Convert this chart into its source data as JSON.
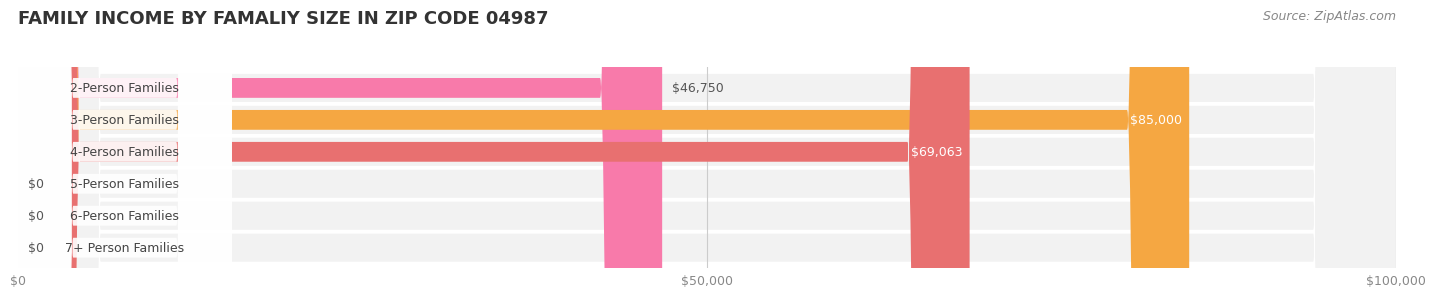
{
  "title": "FAMILY INCOME BY FAMALIY SIZE IN ZIP CODE 04987",
  "source": "Source: ZipAtlas.com",
  "categories": [
    "2-Person Families",
    "3-Person Families",
    "4-Person Families",
    "5-Person Families",
    "6-Person Families",
    "7+ Person Families"
  ],
  "values": [
    46750,
    85000,
    69063,
    0,
    0,
    0
  ],
  "bar_colors": [
    "#f87aaa",
    "#f5a742",
    "#e87070",
    "#a8c4e8",
    "#c4a8d8",
    "#7ecec4"
  ],
  "value_label_inside": [
    false,
    true,
    true,
    false,
    false,
    false
  ],
  "xlim": [
    0,
    100000
  ],
  "xticks": [
    0,
    50000,
    100000
  ],
  "xtick_labels": [
    "$0",
    "$50,000",
    "$100,000"
  ],
  "background_color": "#ffffff",
  "title_fontsize": 13,
  "source_fontsize": 9,
  "label_fontsize": 9,
  "value_fontsize": 9,
  "bar_height": 0.62
}
